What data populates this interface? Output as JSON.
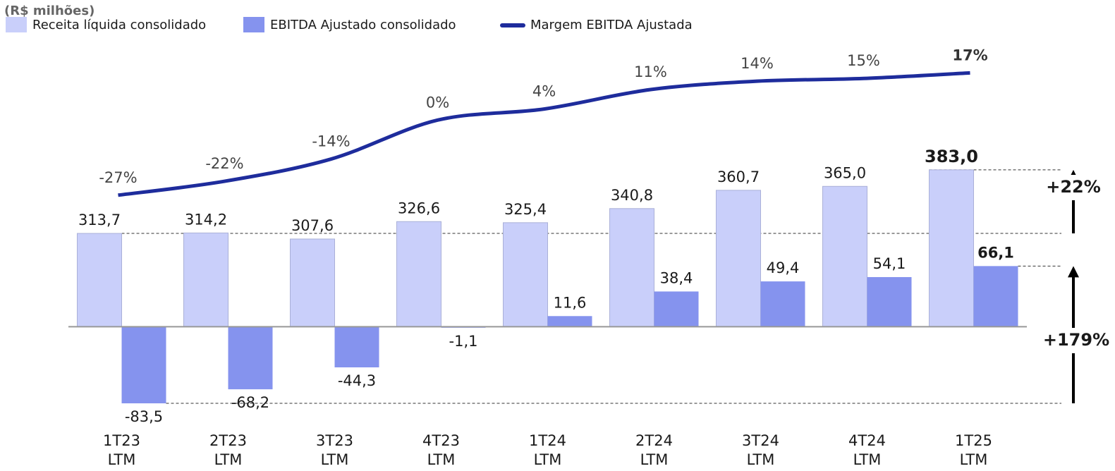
{
  "chart_data": {
    "type": "bar",
    "unit_label": "(R$ milhões)",
    "categories": [
      "1T23 LTM",
      "2T23 LTM",
      "3T23 LTM",
      "4T23 LTM",
      "1T24 LTM",
      "2T24 LTM",
      "3T24 LTM",
      "4T24 LTM",
      "1T25 LTM"
    ],
    "series": [
      {
        "name": "Receita líquida consolidado",
        "type": "bar",
        "color": "#c9cffa",
        "values": [
          313.7,
          314.2,
          307.6,
          326.6,
          325.4,
          340.8,
          360.7,
          365.0,
          383.0
        ],
        "value_labels": [
          "313,7",
          "314,2",
          "307,6",
          "326,6",
          "325,4",
          "340,8",
          "360,7",
          "365,0",
          "383,0"
        ]
      },
      {
        "name": "EBITDA Ajustado consolidado",
        "type": "bar",
        "axis": "y2",
        "color": "#8593ee",
        "values": [
          -83.5,
          -68.2,
          -44.3,
          -1.1,
          11.6,
          38.4,
          49.4,
          54.1,
          66.1
        ],
        "value_labels": [
          "-83,5",
          "-68,2",
          "-44,3",
          "-1,1",
          "11,6",
          "38,4",
          "49,4",
          "54,1",
          "66,1"
        ]
      },
      {
        "name": "Margem EBITDA Ajustada",
        "type": "line",
        "axis": "y3",
        "color": "#1e2c9c",
        "values": [
          -27,
          -22,
          -14,
          0,
          4,
          11,
          14,
          15,
          17
        ],
        "value_labels": [
          "-27%",
          "-22%",
          "-14%",
          "0%",
          "4%",
          "11%",
          "14%",
          "15%",
          "17%"
        ]
      }
    ],
    "ylim": [
      107,
      522
    ],
    "y2lim": [
      -105,
      310
    ],
    "y3lim": [
      -109,
      28
    ],
    "annotations": [
      "+22%",
      "+179%"
    ]
  }
}
